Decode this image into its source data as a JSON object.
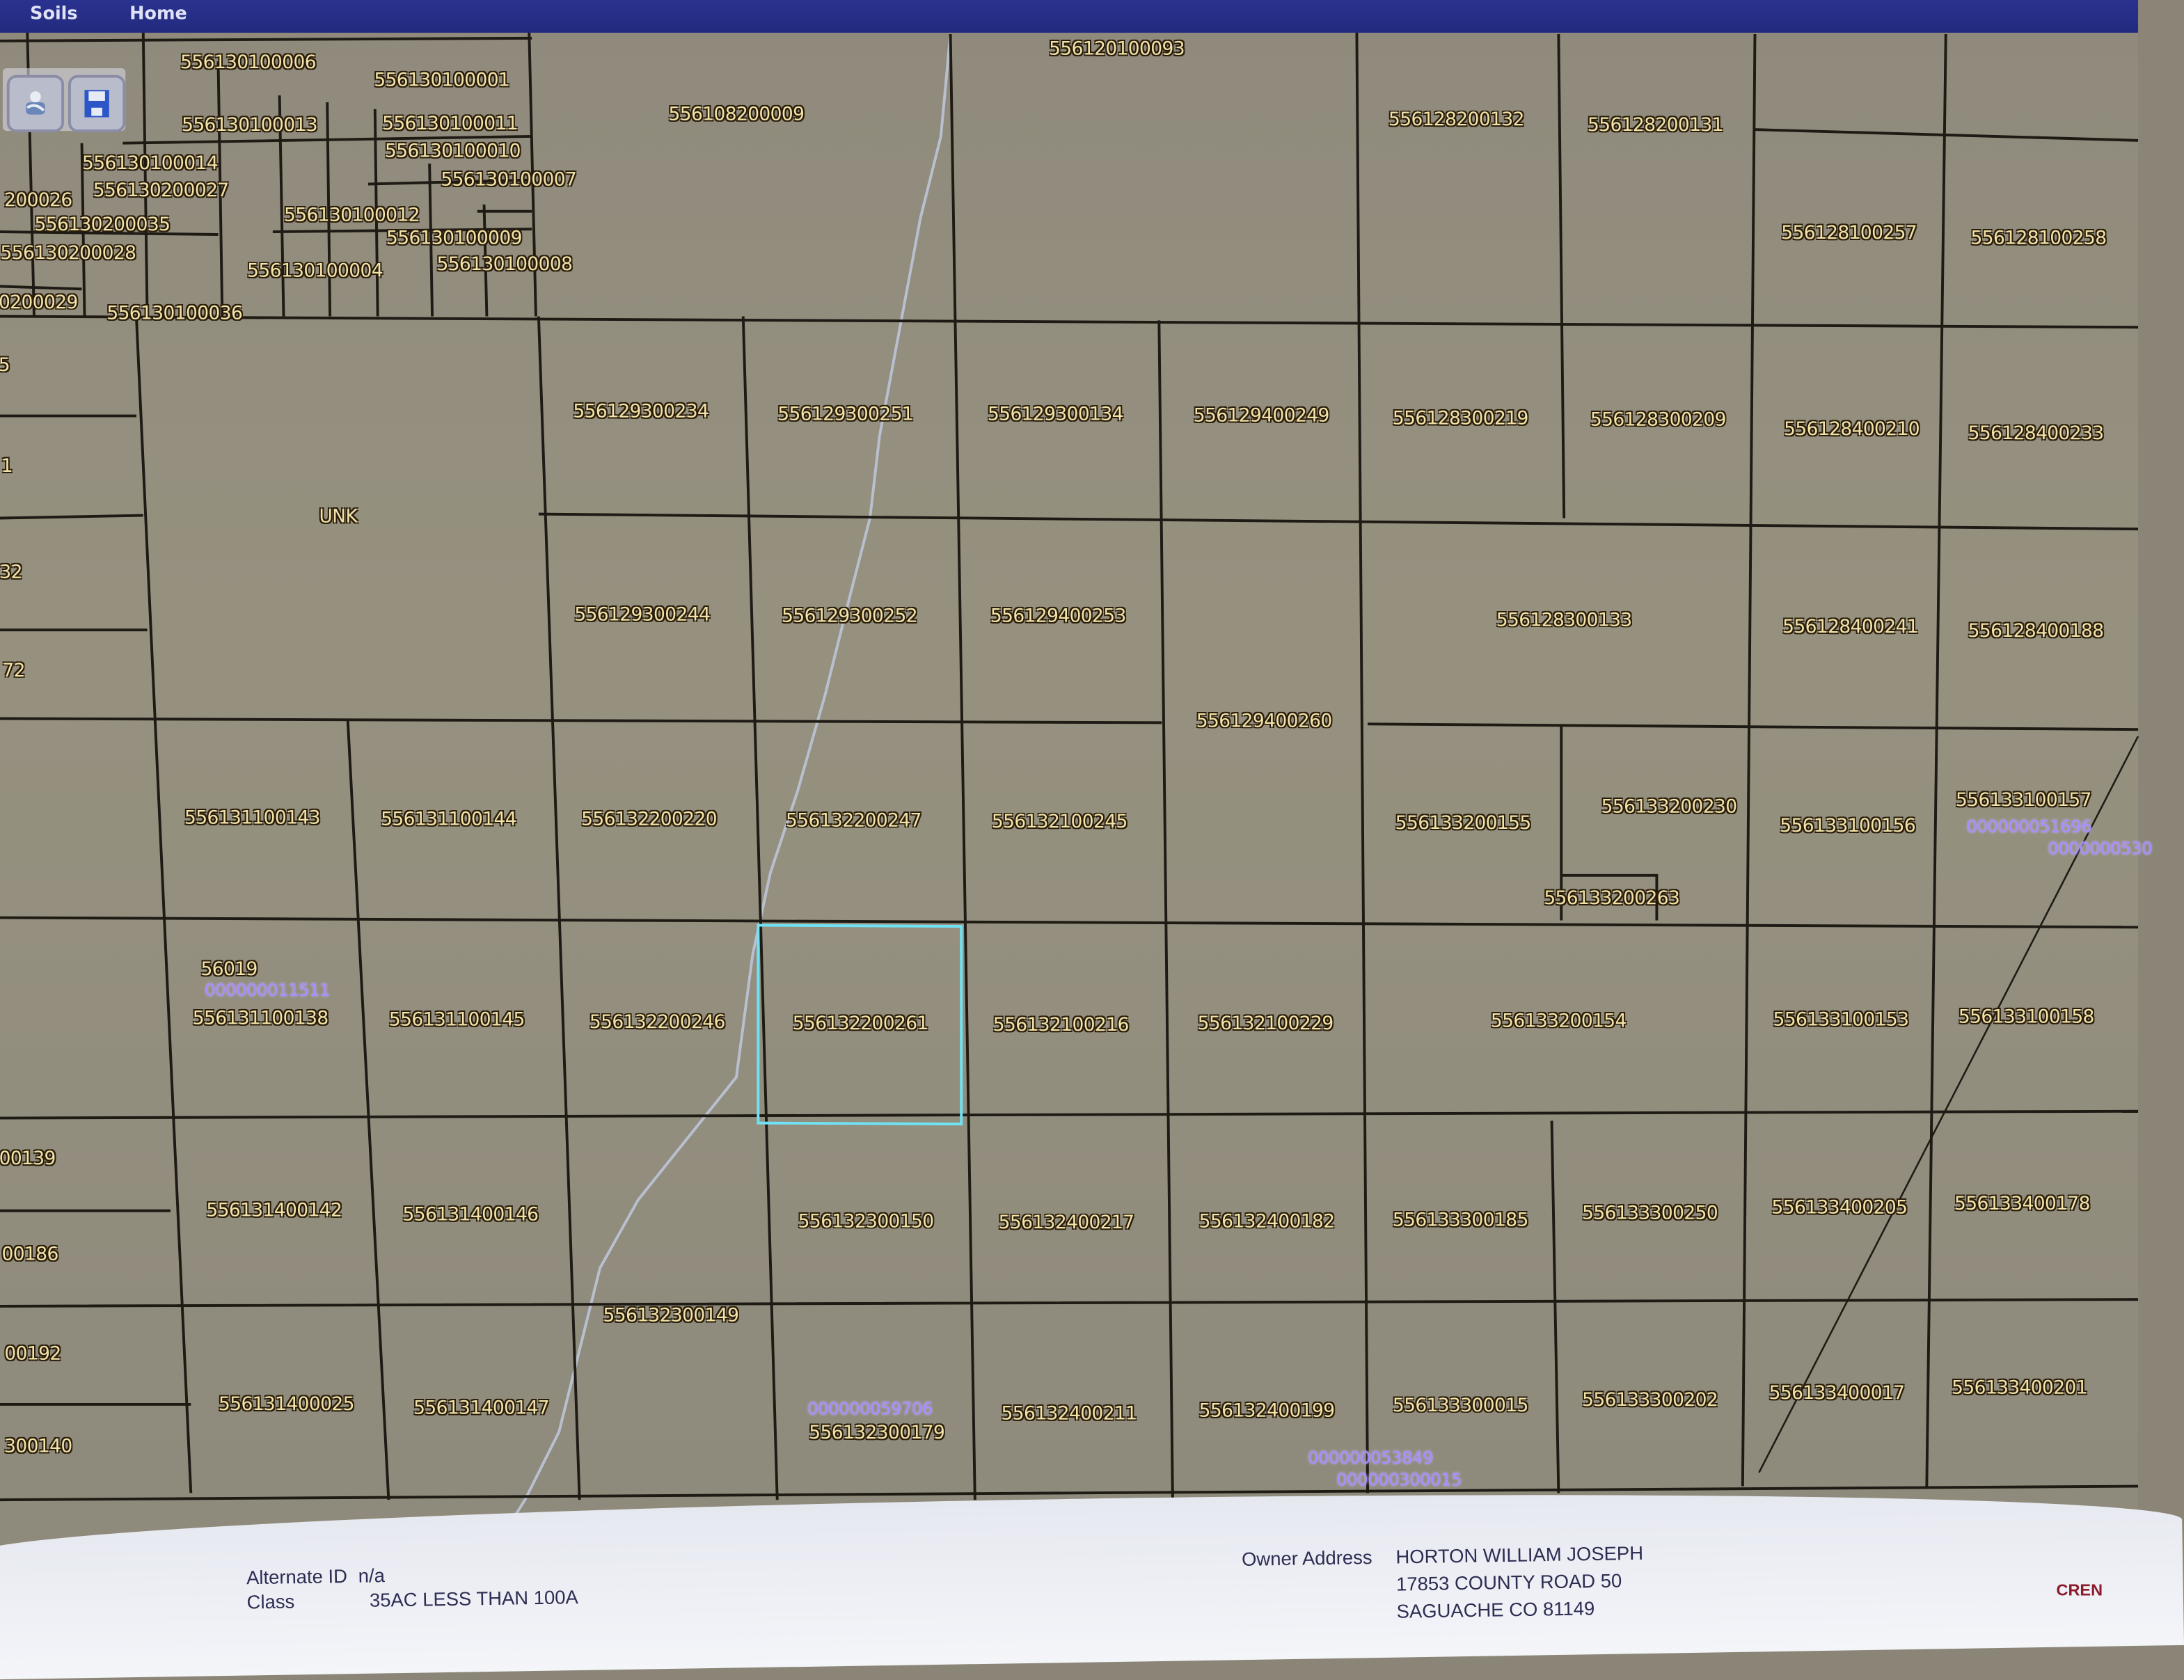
{
  "nav": {
    "items": [
      "Soils",
      "Home"
    ]
  },
  "toolbar": {
    "print_icon": "printer-icon",
    "save_icon": "floppy-disk-icon"
  },
  "map": {
    "selected_parcel": "556132200261",
    "highlight_color": "#6fe3f5",
    "parcel_label_color": "#f3e3a8",
    "account_label_color": "#a98cff",
    "parcel_labels": [
      "556130100006",
      "556130100001",
      "556108200009",
      "556120100093",
      "556128200132",
      "556128200131",
      "556130100013",
      "556130100011",
      "556130100010",
      "556130100014",
      "556130200027",
      "556130100007",
      "200026",
      "556130200035",
      "556130100012",
      "556130100009",
      "556130200028",
      "556130100004",
      "556130100008",
      "0200029",
      "556130100036",
      "556128100257",
      "556128100258",
      "UNK",
      "556129300234",
      "556129300251",
      "556129300134",
      "556129400249",
      "556128300219",
      "556128300209",
      "556128400210",
      "556128400233",
      "556129300244",
      "556129300252",
      "556129400253",
      "556128300133",
      "556128400241",
      "556128400188",
      "556129400260",
      "556131100143",
      "556131100144",
      "556132200220",
      "556132200247",
      "556132100245",
      "556133200155",
      "556133200230",
      "556133100156",
      "556133100157",
      "556133200263",
      "56019",
      "556131100138",
      "556131100145",
      "556132200246",
      "556132200261",
      "556132100216",
      "556132100229",
      "556133200154",
      "556133100153",
      "556133100158",
      "556131400142",
      "556131400146",
      "556132300150",
      "556132400217",
      "556132400182",
      "556133300185",
      "556133300250",
      "556133400205",
      "556133400178",
      "556132300149",
      "556131400025",
      "556131400147",
      "556132300179",
      "556132400211",
      "556132400199",
      "556133300015",
      "556133300202",
      "556133400017",
      "556133400201",
      "5",
      "1",
      "32",
      "72",
      "00139",
      "00186",
      "00192",
      "300140"
    ],
    "account_labels": [
      "000000051696",
      "0000000530",
      "000000011511",
      "000000059706",
      "000000053849",
      "000000300015"
    ]
  },
  "info_panel": {
    "alternate_id_label": "Alternate ID",
    "alternate_id_value": "n/a",
    "class_label": "Class",
    "class_value": "35AC LESS THAN 100A",
    "owner_address_label": "Owner Address",
    "owner_name": "HORTON WILLIAM JOSEPH",
    "owner_street": "17853 COUNTY ROAD 50",
    "owner_city": "SAGUACHE CO 81149"
  },
  "watermark": "CREN"
}
